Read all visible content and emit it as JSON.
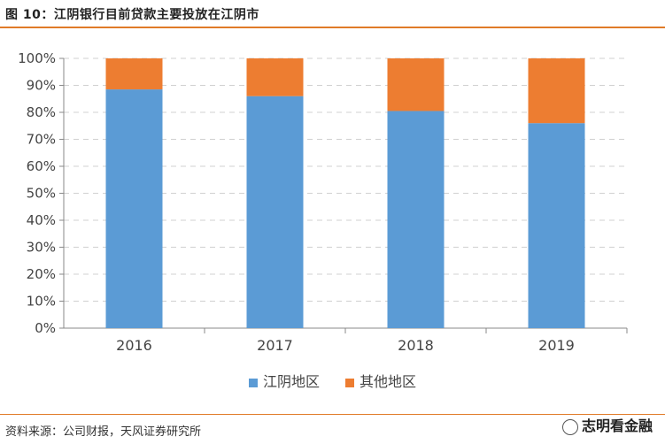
{
  "title": "图 10：江阴银行目前贷款主要投放在江阴市",
  "source": "资料来源：公司财报，天风证券研究所",
  "watermark": "志明看金融",
  "colors": {
    "series1": "#5b9bd5",
    "series2": "#ed7d31",
    "accent": "#e07b28"
  },
  "chart_data": {
    "type": "bar",
    "stacked": true,
    "percent_axis": true,
    "categories": [
      "2016",
      "2017",
      "2018",
      "2019"
    ],
    "series": [
      {
        "name": "江阴地区",
        "values": [
          88.5,
          86,
          80.5,
          76
        ]
      },
      {
        "name": "其他地区",
        "values": [
          11.5,
          14,
          19.5,
          24
        ]
      }
    ],
    "yticks": [
      "0%",
      "10%",
      "20%",
      "30%",
      "40%",
      "50%",
      "60%",
      "70%",
      "80%",
      "90%",
      "100%"
    ],
    "ylim": [
      0,
      100
    ],
    "grid": true,
    "legend": "bottom"
  }
}
